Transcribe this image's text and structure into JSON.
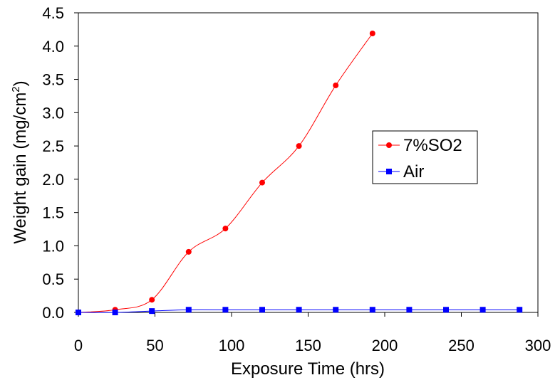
{
  "chart_data": {
    "type": "line",
    "xlabel": "Exposure Time (hrs)",
    "ylabel": "Weight gain (mg/cm",
    "ylabel_sup": "2",
    "ylabel_close": ")",
    "xlim": [
      0,
      300
    ],
    "ylim": [
      0,
      4.5
    ],
    "x_ticks": [
      "0",
      "50",
      "100",
      "150",
      "200",
      "250",
      "300"
    ],
    "y_ticks": [
      "0.0",
      "0.5",
      "1.0",
      "1.5",
      "2.0",
      "2.5",
      "3.0",
      "3.5",
      "4.0",
      "4.5"
    ],
    "grid": false,
    "legend_position": "right",
    "series": [
      {
        "name": "7%SO2",
        "color": "#ff0000",
        "marker": "circle",
        "x": [
          0,
          24,
          48,
          72,
          96,
          120,
          144,
          168,
          192
        ],
        "y": [
          0.0,
          0.04,
          0.19,
          0.91,
          1.26,
          1.95,
          2.5,
          3.41,
          4.19
        ]
      },
      {
        "name": "Air",
        "color": "#0000ff",
        "marker": "square",
        "x": [
          0,
          24,
          48,
          72,
          96,
          120,
          144,
          168,
          192,
          216,
          240,
          264,
          288
        ],
        "y": [
          0.0,
          0.0,
          0.02,
          0.04,
          0.04,
          0.04,
          0.04,
          0.04,
          0.04,
          0.04,
          0.04,
          0.04,
          0.04
        ]
      }
    ]
  }
}
